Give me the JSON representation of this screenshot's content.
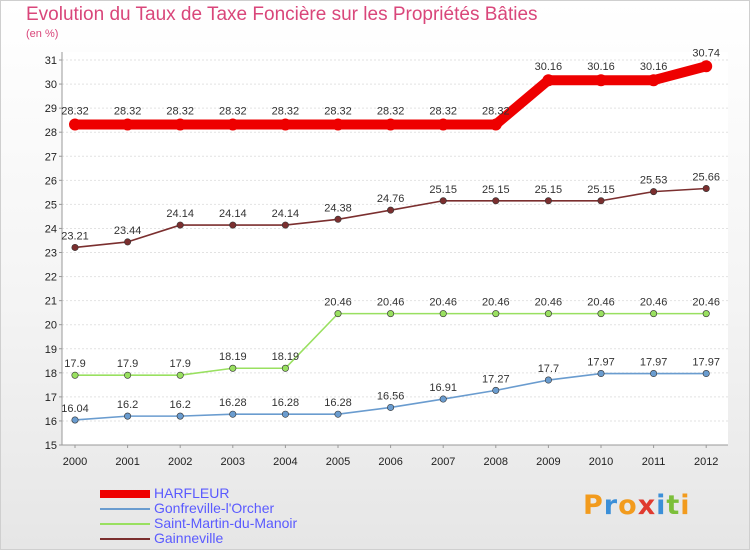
{
  "title": "Evolution du Taux de Taxe Foncière sur les Propriétés Bâties",
  "subtitle": "(en %)",
  "logo": "Proxiti",
  "chart_data": {
    "type": "line",
    "title": "Evolution du Taux de Taxe Foncière sur les Propriétés Bâties",
    "ylabel": "(en %)",
    "xlabel": "",
    "ylim": [
      15,
      31
    ],
    "yticks": [
      15,
      16,
      17,
      18,
      19,
      20,
      21,
      22,
      23,
      24,
      25,
      26,
      27,
      28,
      29,
      30,
      31
    ],
    "categories": [
      "2000",
      "2001",
      "2002",
      "2003",
      "2004",
      "2005",
      "2006",
      "2007",
      "2008",
      "2009",
      "2010",
      "2011",
      "2012"
    ],
    "series": [
      {
        "name": "HARFLEUR",
        "color": "#ee0000",
        "labels": [
          "28.32",
          "28.32",
          "28.32",
          "28.32",
          "28.32",
          "28.32",
          "28.32",
          "28.32",
          "28.32",
          "30.16",
          "30.16",
          "30.16",
          "30.74"
        ],
        "values": [
          28.32,
          28.32,
          28.32,
          28.32,
          28.32,
          28.32,
          28.32,
          28.32,
          28.32,
          30.16,
          30.16,
          30.16,
          30.74
        ]
      },
      {
        "name": "Gonfreville-l'Orcher",
        "color": "#6a9ccf",
        "labels": [
          "16.04",
          "16.2",
          "16.2",
          "16.28",
          "16.28",
          "16.28",
          "16.56",
          "16.91",
          "17.27",
          "17.7",
          "17.97",
          "17.97",
          "17.97"
        ],
        "values": [
          16.04,
          16.2,
          16.2,
          16.28,
          16.28,
          16.28,
          16.56,
          16.91,
          17.27,
          17.7,
          17.97,
          17.97,
          17.97
        ]
      },
      {
        "name": "Saint-Martin-du-Manoir",
        "color": "#99e060",
        "labels": [
          "17.9",
          "17.9",
          "17.9",
          "18.19",
          "18.19",
          "20.46",
          "20.46",
          "20.46",
          "20.46",
          "20.46",
          "20.46",
          "20.46",
          "20.46"
        ],
        "values": [
          17.9,
          17.9,
          17.9,
          18.19,
          18.19,
          20.46,
          20.46,
          20.46,
          20.46,
          20.46,
          20.46,
          20.46,
          20.46
        ]
      },
      {
        "name": "Gainneville",
        "color": "#7b2f2f",
        "labels": [
          "23.21",
          "23.44",
          "24.14",
          "24.14",
          "24.14",
          "24.38",
          "24.76",
          "25.15",
          "25.15",
          "25.15",
          "25.15",
          "25.53",
          "25.66"
        ],
        "values": [
          23.21,
          23.44,
          24.14,
          24.14,
          24.14,
          24.38,
          24.76,
          25.15,
          25.15,
          25.15,
          25.15,
          25.53,
          25.66
        ]
      }
    ]
  }
}
